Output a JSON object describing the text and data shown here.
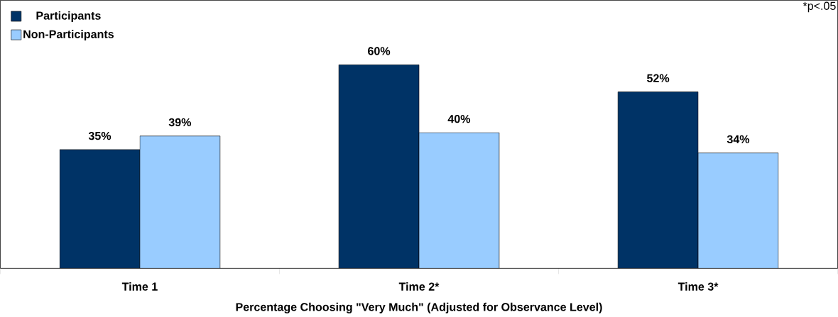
{
  "chart_data": {
    "type": "bar",
    "xlabel": "Percentage Choosing \"Very Much\" (Adjusted for Observance Level)",
    "annotations": [
      "*p<.05"
    ],
    "categories": [
      "Time 1",
      "Time 2*",
      "Time 3*"
    ],
    "ylim": [
      0,
      79
    ],
    "tick_labels": "x",
    "legend": "top left",
    "series": [
      {
        "name": "Participants",
        "color": "#003366",
        "values": [
          35,
          60,
          52
        ],
        "value_labels": [
          "35%",
          "60%",
          "52%"
        ]
      },
      {
        "name": "Non-Participants",
        "color": "#99ccff",
        "values": [
          39,
          40,
          34
        ],
        "value_labels": [
          "39%",
          "40%",
          "34%"
        ]
      }
    ]
  }
}
